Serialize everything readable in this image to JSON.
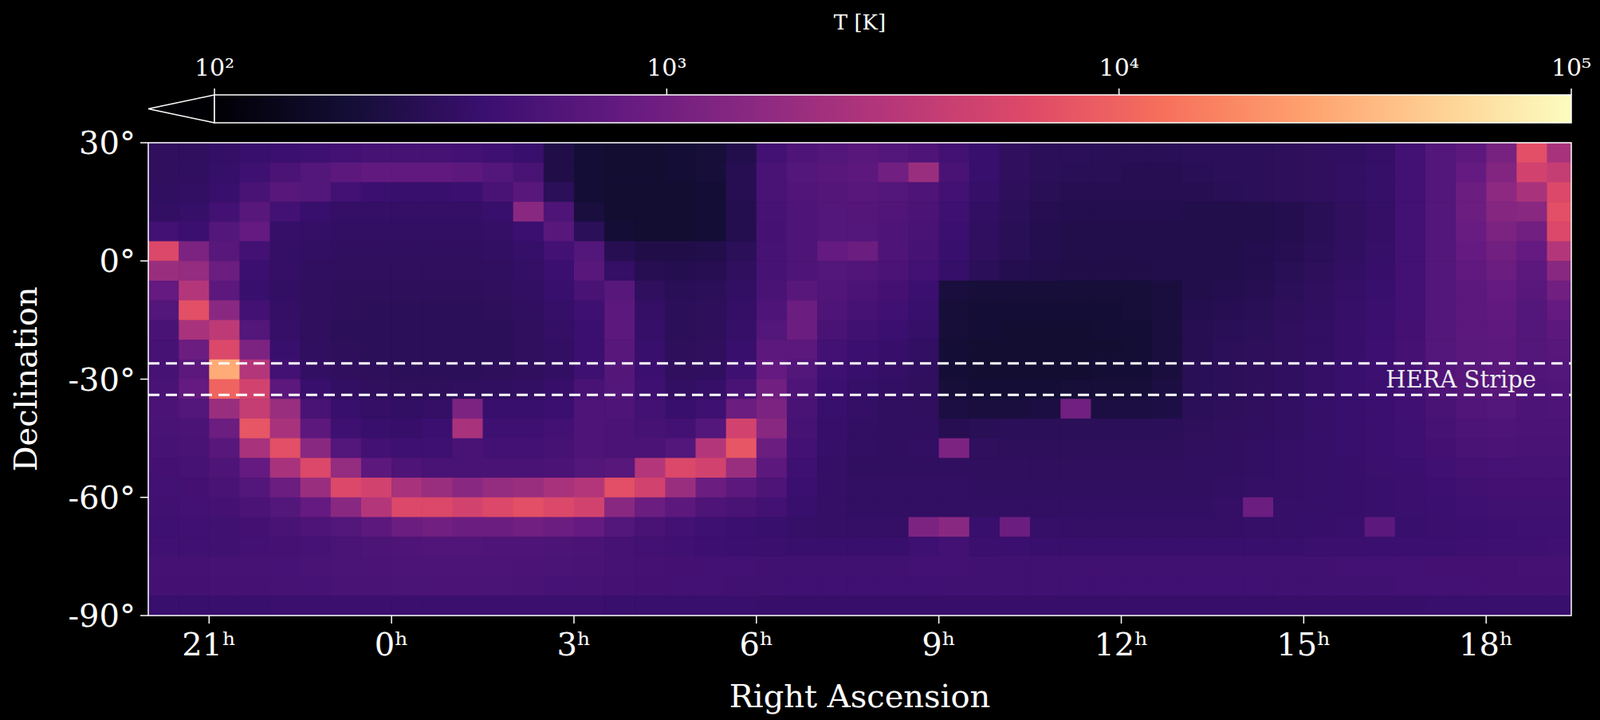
{
  "chart_data": {
    "type": "heatmap",
    "xlabel": "Right Ascension",
    "ylabel": "Declination",
    "xlim": [
      20,
      43.4
    ],
    "ylim": [
      -90,
      30
    ],
    "xticks": [
      {
        "value": 21,
        "label": "21ʰ"
      },
      {
        "value": 24,
        "label": "0ʰ"
      },
      {
        "value": 27,
        "label": "3ʰ"
      },
      {
        "value": 30,
        "label": "6ʰ"
      },
      {
        "value": 33,
        "label": "9ʰ"
      },
      {
        "value": 36,
        "label": "12ʰ"
      },
      {
        "value": 39,
        "label": "15ʰ"
      },
      {
        "value": 42,
        "label": "18ʰ"
      }
    ],
    "yticks": [
      {
        "value": 30,
        "label": "30°"
      },
      {
        "value": 0,
        "label": "0°"
      },
      {
        "value": -30,
        "label": "-30°"
      },
      {
        "value": -60,
        "label": "-60°"
      },
      {
        "value": -90,
        "label": "-90°"
      }
    ],
    "colorbar": {
      "label": "T [K]",
      "lim": [
        100,
        100000
      ],
      "log": true,
      "ticks": [
        {
          "value": 100,
          "label": "10²"
        },
        {
          "value": 1000,
          "label": "10³"
        },
        {
          "value": 10000,
          "label": "10⁴"
        },
        {
          "value": 100000,
          "label": "10⁵"
        }
      ]
    },
    "stripe": {
      "label": "HERA Stripe",
      "dec": [
        -26,
        -34
      ]
    },
    "x": [
      20.25,
      20.75,
      21.25,
      21.75,
      22.25,
      22.75,
      23.25,
      23.75,
      24.25,
      24.75,
      25.25,
      25.75,
      26.25,
      26.75,
      27.25,
      27.75,
      28.25,
      28.75,
      29.25,
      29.75,
      30.25,
      30.75,
      31.25,
      31.75,
      32.25,
      32.75,
      33.25,
      33.75,
      34.25,
      34.75,
      35.25,
      35.75,
      36.25,
      36.75,
      37.25,
      37.75,
      38.25,
      38.75,
      39.25,
      39.75,
      40.25,
      40.75,
      41.25,
      41.75,
      42.25,
      42.75,
      43.25
    ],
    "y": [
      27.5,
      22.5,
      17.5,
      12.5,
      7.5,
      2.5,
      -2.5,
      -7.5,
      -12.5,
      -17.5,
      -22.5,
      -27.5,
      -32.5,
      -37.5,
      -42.5,
      -47.5,
      -52.5,
      -57.5,
      -62.5,
      -67.5,
      -72.5,
      -77.5,
      -82.5,
      -87.5
    ],
    "values": [
      [
        320,
        320,
        350,
        380,
        400,
        420,
        450,
        480,
        480,
        480,
        450,
        420,
        380,
        250,
        200,
        190,
        190,
        200,
        210,
        260,
        450,
        550,
        600,
        650,
        600,
        550,
        450,
        380,
        320,
        300,
        300,
        290,
        290,
        290,
        300,
        300,
        300,
        310,
        320,
        330,
        350,
        450,
        600,
        700,
        1100,
        7000,
        2500
      ],
      [
        320,
        330,
        360,
        420,
        520,
        600,
        700,
        750,
        750,
        750,
        700,
        600,
        500,
        250,
        200,
        190,
        190,
        200,
        210,
        280,
        500,
        600,
        650,
        700,
        1000,
        2000,
        500,
        380,
        320,
        300,
        290,
        290,
        280,
        280,
        290,
        300,
        300,
        310,
        320,
        340,
        360,
        450,
        600,
        800,
        1300,
        5000,
        4000
      ],
      [
        330,
        340,
        380,
        500,
        650,
        600,
        450,
        400,
        380,
        380,
        400,
        500,
        650,
        300,
        200,
        190,
        190,
        190,
        200,
        280,
        500,
        580,
        620,
        650,
        600,
        550,
        450,
        360,
        310,
        290,
        280,
        280,
        280,
        280,
        280,
        290,
        300,
        310,
        320,
        340,
        360,
        450,
        600,
        900,
        1600,
        2500,
        6000
      ],
      [
        340,
        360,
        450,
        650,
        450,
        380,
        350,
        350,
        350,
        350,
        350,
        380,
        1500,
        550,
        220,
        190,
        190,
        190,
        200,
        270,
        480,
        560,
        600,
        620,
        580,
        520,
        420,
        340,
        300,
        280,
        270,
        270,
        270,
        270,
        260,
        260,
        260,
        270,
        290,
        320,
        350,
        450,
        600,
        900,
        1400,
        1500,
        7000
      ],
      [
        450,
        400,
        600,
        800,
        360,
        350,
        340,
        340,
        340,
        340,
        340,
        350,
        400,
        650,
        300,
        200,
        190,
        190,
        200,
        270,
        470,
        550,
        600,
        600,
        560,
        500,
        400,
        330,
        290,
        270,
        260,
        260,
        260,
        260,
        260,
        260,
        260,
        270,
        290,
        320,
        350,
        450,
        600,
        850,
        1200,
        1000,
        6000
      ],
      [
        6000,
        1200,
        650,
        450,
        350,
        340,
        330,
        330,
        330,
        330,
        330,
        340,
        360,
        450,
        600,
        280,
        250,
        250,
        260,
        300,
        480,
        550,
        800,
        900,
        550,
        480,
        380,
        320,
        290,
        270,
        260,
        260,
        260,
        260,
        260,
        260,
        270,
        280,
        300,
        330,
        360,
        450,
        600,
        800,
        1000,
        800,
        3000
      ],
      [
        2000,
        1800,
        900,
        400,
        350,
        330,
        320,
        320,
        320,
        320,
        320,
        330,
        350,
        400,
        650,
        350,
        280,
        270,
        280,
        320,
        480,
        550,
        600,
        580,
        520,
        450,
        360,
        300,
        270,
        260,
        250,
        250,
        250,
        260,
        260,
        260,
        270,
        290,
        310,
        340,
        370,
        450,
        600,
        750,
        900,
        700,
        1500
      ],
      [
        800,
        3000,
        700,
        380,
        340,
        320,
        310,
        310,
        310,
        310,
        310,
        320,
        340,
        380,
        500,
        650,
        320,
        290,
        300,
        340,
        500,
        650,
        580,
        520,
        460,
        400,
        220,
        210,
        210,
        210,
        210,
        210,
        210,
        220,
        260,
        270,
        280,
        300,
        320,
        350,
        380,
        450,
        600,
        700,
        800,
        650,
        1000
      ],
      [
        600,
        7000,
        1500,
        450,
        350,
        320,
        310,
        300,
        300,
        300,
        300,
        310,
        330,
        360,
        420,
        700,
        350,
        300,
        310,
        350,
        550,
        900,
        550,
        480,
        430,
        380,
        210,
        200,
        200,
        200,
        200,
        200,
        210,
        220,
        270,
        280,
        290,
        310,
        330,
        360,
        390,
        450,
        600,
        700,
        750,
        600,
        800
      ],
      [
        500,
        2500,
        3500,
        600,
        360,
        320,
        300,
        300,
        300,
        300,
        300,
        300,
        320,
        350,
        400,
        700,
        360,
        300,
        310,
        360,
        600,
        900,
        500,
        440,
        400,
        360,
        210,
        200,
        190,
        190,
        190,
        200,
        200,
        220,
        280,
        290,
        300,
        320,
        340,
        370,
        400,
        460,
        600,
        700,
        720,
        600,
        700
      ],
      [
        480,
        900,
        6000,
        1200,
        380,
        330,
        310,
        300,
        300,
        300,
        300,
        300,
        320,
        340,
        400,
        650,
        380,
        310,
        320,
        380,
        700,
        700,
        450,
        400,
        370,
        340,
        200,
        190,
        190,
        190,
        190,
        190,
        200,
        220,
        280,
        300,
        310,
        320,
        340,
        370,
        410,
        470,
        600,
        680,
        700,
        600,
        650
      ],
      [
        480,
        700,
        30000,
        3000,
        450,
        340,
        320,
        310,
        300,
        300,
        300,
        310,
        320,
        340,
        420,
        620,
        400,
        320,
        330,
        420,
        800,
        600,
        420,
        380,
        350,
        330,
        200,
        190,
        190,
        190,
        190,
        200,
        200,
        220,
        290,
        300,
        310,
        330,
        350,
        380,
        410,
        470,
        580,
        650,
        680,
        580,
        600
      ],
      [
        500,
        800,
        10000,
        5000,
        700,
        380,
        340,
        320,
        310,
        310,
        320,
        330,
        340,
        370,
        500,
        600,
        420,
        340,
        360,
        500,
        1000,
        550,
        400,
        360,
        340,
        320,
        210,
        200,
        200,
        200,
        210,
        210,
        210,
        230,
        290,
        300,
        310,
        330,
        350,
        380,
        400,
        450,
        550,
        620,
        650,
        560,
        580
      ],
      [
        520,
        600,
        2000,
        4000,
        2000,
        500,
        380,
        350,
        340,
        350,
        1200,
        380,
        380,
        400,
        550,
        550,
        450,
        380,
        420,
        900,
        1200,
        500,
        380,
        350,
        330,
        320,
        230,
        220,
        220,
        230,
        1000,
        230,
        230,
        240,
        300,
        310,
        320,
        340,
        360,
        380,
        400,
        430,
        500,
        580,
        600,
        540,
        550
      ],
      [
        500,
        520,
        900,
        8000,
        2500,
        700,
        420,
        380,
        370,
        400,
        2500,
        420,
        420,
        450,
        550,
        520,
        480,
        450,
        600,
        5000,
        1500,
        480,
        370,
        340,
        330,
        330,
        280,
        290,
        300,
        300,
        300,
        300,
        300,
        300,
        310,
        320,
        330,
        340,
        360,
        380,
        400,
        420,
        480,
        540,
        560,
        520,
        520
      ],
      [
        480,
        500,
        650,
        2500,
        7000,
        1500,
        600,
        450,
        420,
        420,
        500,
        450,
        450,
        480,
        550,
        520,
        520,
        600,
        3000,
        8000,
        900,
        450,
        360,
        340,
        330,
        340,
        1200,
        320,
        310,
        310,
        310,
        310,
        310,
        310,
        320,
        330,
        340,
        350,
        360,
        380,
        400,
        420,
        460,
        500,
        520,
        500,
        500
      ],
      [
        460,
        480,
        550,
        800,
        2500,
        6000,
        1800,
        700,
        550,
        500,
        500,
        500,
        500,
        520,
        600,
        650,
        3000,
        6000,
        5000,
        2000,
        700,
        420,
        350,
        330,
        330,
        330,
        330,
        320,
        320,
        320,
        320,
        320,
        320,
        320,
        330,
        330,
        340,
        350,
        360,
        370,
        390,
        400,
        430,
        470,
        490,
        480,
        480
      ],
      [
        450,
        460,
        500,
        600,
        900,
        2000,
        6000,
        5000,
        2500,
        2000,
        1500,
        1800,
        2000,
        2500,
        3000,
        7000,
        5000,
        2000,
        900,
        700,
        550,
        400,
        350,
        340,
        340,
        340,
        340,
        330,
        330,
        330,
        330,
        330,
        330,
        330,
        330,
        340,
        350,
        350,
        360,
        370,
        380,
        390,
        410,
        440,
        460,
        460,
        460
      ],
      [
        440,
        450,
        470,
        520,
        600,
        800,
        1500,
        3000,
        6000,
        6000,
        5000,
        6000,
        7000,
        6000,
        5000,
        1500,
        900,
        700,
        550,
        500,
        450,
        380,
        350,
        340,
        340,
        340,
        340,
        340,
        340,
        340,
        340,
        340,
        340,
        340,
        340,
        350,
        900,
        360,
        360,
        370,
        380,
        390,
        400,
        420,
        440,
        440,
        440
      ],
      [
        420,
        430,
        440,
        460,
        500,
        550,
        600,
        700,
        900,
        1000,
        900,
        900,
        1000,
        900,
        800,
        600,
        500,
        450,
        420,
        400,
        380,
        360,
        350,
        350,
        350,
        1200,
        1500,
        380,
        900,
        360,
        350,
        350,
        350,
        350,
        350,
        350,
        360,
        360,
        370,
        380,
        700,
        380,
        390,
        400,
        410,
        420,
        420
      ],
      [
        430,
        430,
        440,
        450,
        470,
        490,
        510,
        530,
        560,
        580,
        580,
        560,
        560,
        540,
        520,
        480,
        450,
        430,
        410,
        400,
        390,
        380,
        380,
        380,
        380,
        420,
        450,
        390,
        400,
        380,
        380,
        380,
        380,
        380,
        380,
        380,
        380,
        380,
        390,
        390,
        400,
        400,
        400,
        410,
        420,
        420,
        430
      ],
      [
        470,
        470,
        480,
        480,
        490,
        500,
        510,
        520,
        530,
        540,
        540,
        530,
        520,
        510,
        500,
        480,
        470,
        460,
        450,
        450,
        440,
        440,
        440,
        440,
        440,
        450,
        450,
        440,
        440,
        440,
        440,
        440,
        440,
        440,
        440,
        440,
        440,
        440,
        440,
        450,
        450,
        450,
        460,
        460,
        460,
        470,
        470
      ],
      [
        460,
        460,
        470,
        470,
        480,
        490,
        500,
        500,
        510,
        520,
        520,
        510,
        500,
        490,
        480,
        470,
        460,
        450,
        450,
        440,
        440,
        430,
        430,
        430,
        430,
        430,
        440,
        440,
        440,
        440,
        430,
        430,
        430,
        430,
        430,
        430,
        430,
        440,
        440,
        440,
        440,
        450,
        450,
        450,
        460,
        460,
        460
      ],
      [
        380,
        380,
        380,
        380,
        390,
        390,
        390,
        390,
        390,
        390,
        390,
        390,
        390,
        390,
        390,
        380,
        380,
        380,
        380,
        380,
        370,
        370,
        370,
        370,
        370,
        370,
        370,
        370,
        370,
        370,
        370,
        370,
        370,
        370,
        370,
        370,
        370,
        370,
        370,
        370,
        370,
        370,
        380,
        380,
        380,
        380,
        380
      ]
    ]
  }
}
